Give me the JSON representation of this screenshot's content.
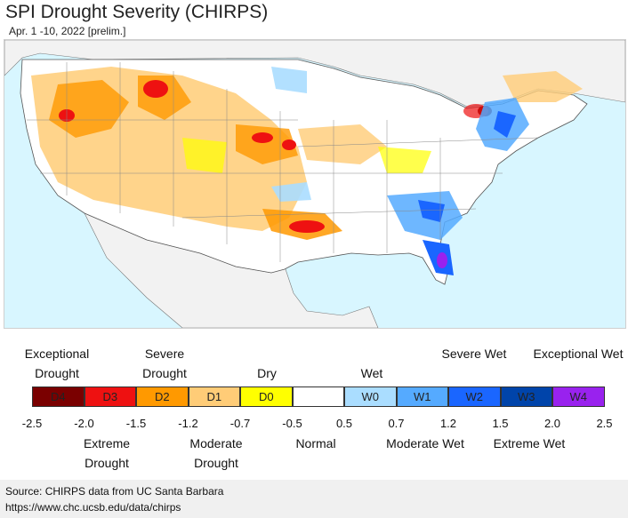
{
  "header": {
    "title": "SPI Drought Severity (CHIRPS)",
    "subtitle": "Apr. 1 -10, 2022 [prelim.]"
  },
  "legend": {
    "classes": [
      {
        "code": "D4",
        "color": "#7a0000"
      },
      {
        "code": "D3",
        "color": "#ee1111"
      },
      {
        "code": "D2",
        "color": "#ff9900"
      },
      {
        "code": "D1",
        "color": "#ffcc77"
      },
      {
        "code": "D0",
        "color": "#ffff00"
      },
      {
        "code": "",
        "color": "#ffffff"
      },
      {
        "code": "W0",
        "color": "#aaddff"
      },
      {
        "code": "W1",
        "color": "#55aaff"
      },
      {
        "code": "W2",
        "color": "#1a66ff"
      },
      {
        "code": "W3",
        "color": "#0044aa"
      },
      {
        "code": "W4",
        "color": "#9922ee"
      }
    ],
    "ticks": [
      "-2.5",
      "-2.0",
      "-1.5",
      "-1.2",
      "-0.7",
      "-0.5",
      "0.5",
      "0.7",
      "1.2",
      "1.5",
      "2.0",
      "2.5"
    ],
    "top_labels": {
      "exceptional_drought": "Exceptional Drought",
      "severe_drought": "Severe Drought",
      "dry": "Dry",
      "wet": "Wet",
      "severe_wet": "Severe Wet",
      "exceptional_wet": "Exceptional Wet"
    },
    "bottom_labels": {
      "extreme_drought": "Extreme Drought",
      "moderate_drought": "Moderate Drought",
      "normal": "Normal",
      "moderate_wet": "Moderate Wet",
      "extreme_wet": "Extreme Wet"
    }
  },
  "footer": {
    "source": "Source: CHIRPS data from UC Santa Barbara",
    "url": "https://www.chc.ucsb.edu/data/chirps"
  }
}
